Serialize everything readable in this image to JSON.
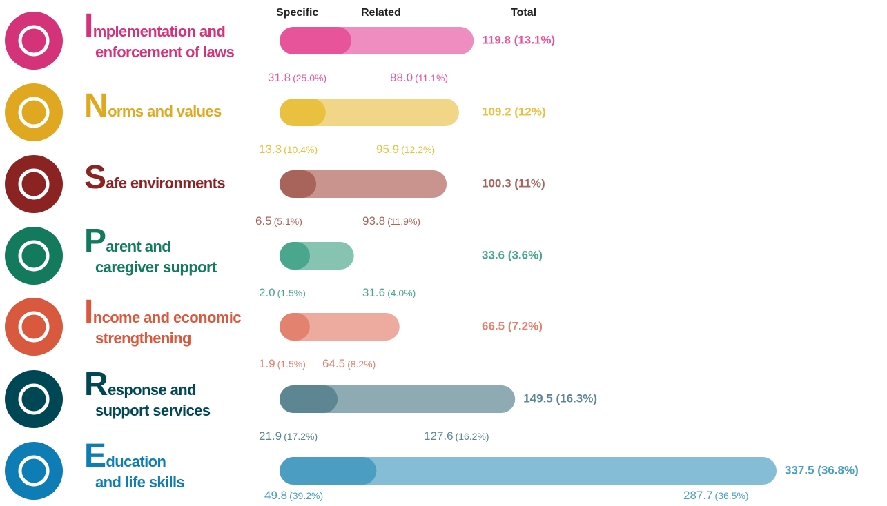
{
  "chart_data": {
    "type": "bar",
    "orientation": "horizontal",
    "stacked": true,
    "column_headers": [
      "Specific",
      "Related",
      "Total"
    ],
    "categories": [
      [
        "Implementation and",
        "enforcement of laws"
      ],
      [
        "Norms and values"
      ],
      [
        "Safe environments"
      ],
      [
        "Parent and",
        "caregiver support"
      ],
      [
        "Income and economic",
        "strengthening"
      ],
      [
        "Response and",
        "support services"
      ],
      [
        "Education",
        "and life skills"
      ]
    ],
    "label_colors": [
      "#d4337a",
      "#e0a820",
      "#8b2323",
      "#137a5e",
      "#d9593f",
      "#004756",
      "#0e7db5"
    ],
    "series": [
      {
        "name": "Specific",
        "colors": [
          "#e8549a",
          "#e9c040",
          "#a8645b",
          "#4aa78e",
          "#e2826f",
          "#5d8592",
          "#4b9ec2"
        ],
        "values": [
          31.8,
          13.3,
          6.5,
          2.0,
          1.9,
          21.9,
          49.8
        ],
        "value_labels": [
          "31.8",
          "13.3",
          "6.5",
          "2.0",
          "1.9",
          "21.9",
          "49.8"
        ],
        "share_labels": [
          "(25.0%)",
          "(10.4%)",
          "(5.1%)",
          "(1.5%)",
          "(1.5%)",
          "(17.2%)",
          "(39.2%)"
        ]
      },
      {
        "name": "Related",
        "colors": [
          "#ef8cc0",
          "#f1d687",
          "#c8948d",
          "#86c4b1",
          "#edaa9e",
          "#8eaab2",
          "#85bcd6"
        ],
        "values": [
          88.0,
          95.9,
          93.8,
          31.6,
          64.5,
          127.6,
          287.7
        ],
        "value_labels": [
          "88.0",
          "95.9",
          "93.8",
          "31.6",
          "64.5",
          "127.6",
          "287.7"
        ],
        "share_labels": [
          "(11.1%)",
          "(12.2%)",
          "(11.9%)",
          "(4.0%)",
          "(8.2%)",
          "(16.2%)",
          "(36.5%)"
        ]
      }
    ],
    "totals": {
      "values": [
        119.8,
        109.2,
        100.3,
        33.6,
        66.5,
        149.5,
        337.5
      ],
      "value_labels": [
        "119.8 (13.1%)",
        "109.2 (12%)",
        "100.3 (11%)",
        "33.6 (3.6%)",
        "66.5 (7.2%)",
        "149.5 (16.3%)",
        "337.5 (36.8%)"
      ]
    }
  }
}
